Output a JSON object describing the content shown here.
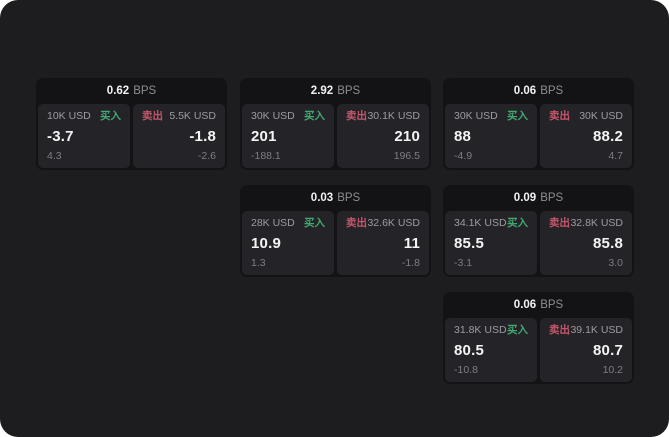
{
  "colors": {
    "surface": "#1d1d1f",
    "card": "#131315",
    "panel": "#242428",
    "buy": "#44a771",
    "sell": "#c4566b"
  },
  "cards": [
    {
      "spread": "0.62",
      "unit": "BPS",
      "buy": {
        "amount": "10K USD",
        "label": "买入",
        "price": "-3.7",
        "sub": "4.3"
      },
      "sell": {
        "label": "卖出",
        "amount": "5.5K USD",
        "price": "-1.8",
        "sub": "-2.6"
      }
    },
    {
      "spread": "2.92",
      "unit": "BPS",
      "buy": {
        "amount": "30K USD",
        "label": "买入",
        "price": "201",
        "sub": "-188.1"
      },
      "sell": {
        "label": "卖出",
        "amount": "30.1K USD",
        "price": "210",
        "sub": "196.5"
      }
    },
    {
      "spread": "0.06",
      "unit": "BPS",
      "buy": {
        "amount": "30K USD",
        "label": "买入",
        "price": "88",
        "sub": "-4.9"
      },
      "sell": {
        "label": "卖出",
        "amount": "30K USD",
        "price": "88.2",
        "sub": "4.7"
      }
    },
    {
      "spread": "0.03",
      "unit": "BPS",
      "buy": {
        "amount": "28K USD",
        "label": "买入",
        "price": "10.9",
        "sub": "1.3"
      },
      "sell": {
        "label": "卖出",
        "amount": "32.6K USD",
        "price": "11",
        "sub": "-1.8"
      }
    },
    {
      "spread": "0.09",
      "unit": "BPS",
      "buy": {
        "amount": "34.1K USD",
        "label": "买入",
        "price": "85.5",
        "sub": "-3.1"
      },
      "sell": {
        "label": "卖出",
        "amount": "32.8K USD",
        "price": "85.8",
        "sub": "3.0"
      }
    },
    {
      "spread": "0.06",
      "unit": "BPS",
      "buy": {
        "amount": "31.8K USD",
        "label": "买入",
        "price": "80.5",
        "sub": "-10.8"
      },
      "sell": {
        "label": "卖出",
        "amount": "39.1K USD",
        "price": "80.7",
        "sub": "10.2"
      }
    }
  ]
}
